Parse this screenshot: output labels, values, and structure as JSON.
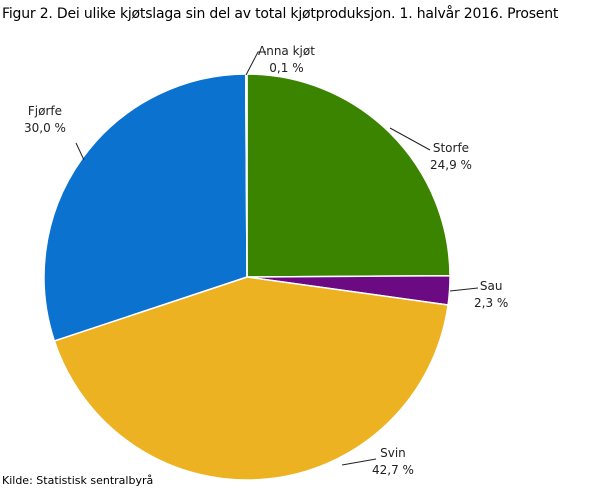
{
  "chart_data": {
    "type": "pie",
    "title": "Figur 2. Dei ulike kjøtslaga sin del av total kjøtproduksjon. 1. halvår 2016. Prosent",
    "source": "Kilde: Statistisk sentralbyrå",
    "start_angle": "top",
    "direction": "clockwise",
    "slices": [
      {
        "name": "Storfe",
        "value": 24.9,
        "label": "24,9  %",
        "color": "#3b8400"
      },
      {
        "name": "Sau",
        "value": 2.3,
        "label": "2,3  %",
        "color": "#6b0a82"
      },
      {
        "name": "Svin",
        "value": 42.7,
        "label": "42,7  %",
        "color": "#ecb221"
      },
      {
        "name": "Fjørfe",
        "value": 30.0,
        "label": "30,0  %",
        "color": "#0b72d0"
      },
      {
        "name": "Anna kjøt",
        "value": 0.1,
        "label": "0,1  %",
        "color": "#dde6ee"
      }
    ]
  }
}
